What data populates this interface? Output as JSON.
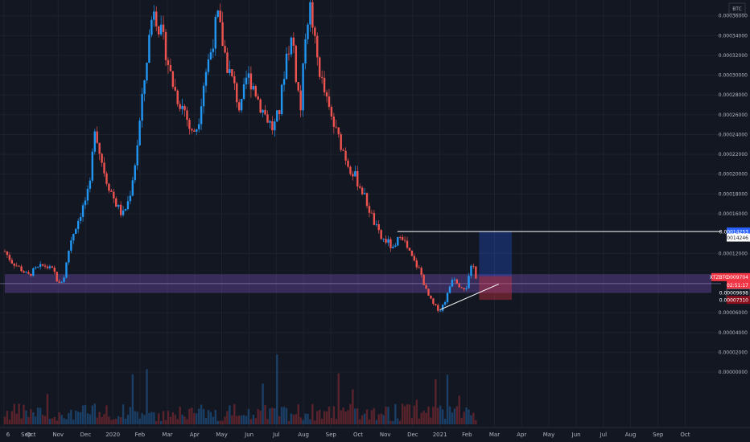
{
  "chart_data": {
    "type": "candlestick",
    "currency_label": "BTC",
    "symbol": "XTZBTC",
    "xlim": [
      2019.67,
      2021.83
    ],
    "ylim": [
      -5.6e-06,
      3.76e-05
    ],
    "x_tick_labels": [
      {
        "label": "6",
        "t": 2019.667
      },
      {
        "label": "Sep",
        "t": 2019.667
      },
      {
        "label": "Oct",
        "t": 2019.75
      },
      {
        "label": "Nov",
        "t": 2019.833
      },
      {
        "label": "Dec",
        "t": 2019.917
      },
      {
        "label": "2020",
        "t": 2020.0
      },
      {
        "label": "Feb",
        "t": 2020.083
      },
      {
        "label": "Mar",
        "t": 2020.167
      },
      {
        "label": "Apr",
        "t": 2020.25
      },
      {
        "label": "May",
        "t": 2020.333
      },
      {
        "label": "Jun",
        "t": 2020.417
      },
      {
        "label": "Jul",
        "t": 2020.5
      },
      {
        "label": "Aug",
        "t": 2020.583
      },
      {
        "label": "Sep",
        "t": 2020.667
      },
      {
        "label": "Oct",
        "t": 2020.75
      },
      {
        "label": "Nov",
        "t": 2020.833
      },
      {
        "label": "Dec",
        "t": 2020.917
      },
      {
        "label": "2021",
        "t": 2021.0
      },
      {
        "label": "Feb",
        "t": 2021.083
      },
      {
        "label": "Mar",
        "t": 2021.167
      },
      {
        "label": "Apr",
        "t": 2021.25
      },
      {
        "label": "May",
        "t": 2021.333
      },
      {
        "label": "Jun",
        "t": 2021.417
      },
      {
        "label": "Jul",
        "t": 2021.5
      },
      {
        "label": "Aug",
        "t": 2021.583
      },
      {
        "label": "Sep",
        "t": 2021.667
      },
      {
        "label": "Oct",
        "t": 2021.75
      }
    ],
    "y_tick_labels": [
      {
        "label": "0.00036000",
        "v": 3.6e-05
      },
      {
        "label": "0.00034000",
        "v": 3.4e-05
      },
      {
        "label": "0.00032000",
        "v": 3.2e-05
      },
      {
        "label": "0.00030000",
        "v": 3e-05
      },
      {
        "label": "0.00028000",
        "v": 2.8e-05
      },
      {
        "label": "0.00026000",
        "v": 2.6e-05
      },
      {
        "label": "0.00024000",
        "v": 2.4e-05
      },
      {
        "label": "0.00022000",
        "v": 2.2e-05
      },
      {
        "label": "0.00020000",
        "v": 2e-05
      },
      {
        "label": "0.00018000",
        "v": 1.8e-05
      },
      {
        "label": "0.00016000",
        "v": 1.6e-05
      },
      {
        "label": "0.00012000",
        "v": 1.2e-05
      },
      {
        "label": "0.00006000",
        "v": 6e-06
      },
      {
        "label": "0.00004000",
        "v": 4e-06
      },
      {
        "label": "0.00002000",
        "v": 2e-06
      },
      {
        "label": "0.00000000",
        "v": 0.0
      }
    ],
    "price_badges": [
      {
        "label": "0.00014253",
        "v": 1.42e-05,
        "color": "#2962ff"
      },
      {
        "label": "0.00014246",
        "v": 1.36e-05,
        "color": "#ffffff"
      },
      {
        "label": "0.00009704",
        "v": 9.6e-06,
        "color": "#f23645",
        "tag": "XTZBTC"
      },
      {
        "label": "02:51:17",
        "v": 8.8e-06,
        "color": "#f23645"
      },
      {
        "label": "0.00009698",
        "v": 8e-06,
        "color": "#131722"
      },
      {
        "label": "0.00007310",
        "v": 7.3e-06,
        "color": "#880e1e"
      }
    ],
    "price_series": [
      {
        "t": 2019.67,
        "v": 1.22e-05
      },
      {
        "t": 2019.69,
        "v": 1.12e-05
      },
      {
        "t": 2019.72,
        "v": 1.04e-05
      },
      {
        "t": 2019.74,
        "v": 9.7e-06
      },
      {
        "t": 2019.76,
        "v": 1.03e-05
      },
      {
        "t": 2019.79,
        "v": 1.08e-05
      },
      {
        "t": 2019.82,
        "v": 1.02e-05
      },
      {
        "t": 2019.835,
        "v": 8.8e-06
      },
      {
        "t": 2019.85,
        "v": 9.5e-06
      },
      {
        "t": 2019.87,
        "v": 1.32e-05
      },
      {
        "t": 2019.89,
        "v": 1.5e-05
      },
      {
        "t": 2019.91,
        "v": 1.68e-05
      },
      {
        "t": 2019.93,
        "v": 1.86e-05
      },
      {
        "t": 2019.945,
        "v": 2.5e-05
      },
      {
        "t": 2019.96,
        "v": 2.22e-05
      },
      {
        "t": 2019.98,
        "v": 1.95e-05
      },
      {
        "t": 2020.01,
        "v": 1.7e-05
      },
      {
        "t": 2020.03,
        "v": 1.58e-05
      },
      {
        "t": 2020.05,
        "v": 1.75e-05
      },
      {
        "t": 2020.07,
        "v": 2.15e-05
      },
      {
        "t": 2020.09,
        "v": 2.75e-05
      },
      {
        "t": 2020.11,
        "v": 3.35e-05
      },
      {
        "t": 2020.125,
        "v": 3.72e-05
      },
      {
        "t": 2020.14,
        "v": 3.5e-05
      },
      {
        "t": 2020.16,
        "v": 3.28e-05
      },
      {
        "t": 2020.18,
        "v": 2.95e-05
      },
      {
        "t": 2020.2,
        "v": 2.75e-05
      },
      {
        "t": 2020.22,
        "v": 2.65e-05
      },
      {
        "t": 2020.24,
        "v": 2.4e-05
      },
      {
        "t": 2020.26,
        "v": 2.5e-05
      },
      {
        "t": 2020.28,
        "v": 2.98e-05
      },
      {
        "t": 2020.3,
        "v": 3.25e-05
      },
      {
        "t": 2020.32,
        "v": 3.6e-05
      },
      {
        "t": 2020.335,
        "v": 3.35e-05
      },
      {
        "t": 2020.35,
        "v": 3.1e-05
      },
      {
        "t": 2020.37,
        "v": 2.9e-05
      },
      {
        "t": 2020.39,
        "v": 2.62e-05
      },
      {
        "t": 2020.41,
        "v": 3e-05
      },
      {
        "t": 2020.43,
        "v": 2.9e-05
      },
      {
        "t": 2020.45,
        "v": 2.7e-05
      },
      {
        "t": 2020.47,
        "v": 2.58e-05
      },
      {
        "t": 2020.49,
        "v": 2.45e-05
      },
      {
        "t": 2020.51,
        "v": 2.65e-05
      },
      {
        "t": 2020.53,
        "v": 3.2e-05
      },
      {
        "t": 2020.55,
        "v": 3.4e-05
      },
      {
        "t": 2020.56,
        "v": 3e-05
      },
      {
        "t": 2020.575,
        "v": 2.65e-05
      },
      {
        "t": 2020.59,
        "v": 3.5e-05
      },
      {
        "t": 2020.605,
        "v": 3.7e-05
      },
      {
        "t": 2020.62,
        "v": 3.25e-05
      },
      {
        "t": 2020.64,
        "v": 2.92e-05
      },
      {
        "t": 2020.66,
        "v": 2.65e-05
      },
      {
        "t": 2020.68,
        "v": 2.45e-05
      },
      {
        "t": 2020.7,
        "v": 2.28e-05
      },
      {
        "t": 2020.72,
        "v": 2.1e-05
      },
      {
        "t": 2020.74,
        "v": 1.98e-05
      },
      {
        "t": 2020.76,
        "v": 1.85e-05
      },
      {
        "t": 2020.78,
        "v": 1.68e-05
      },
      {
        "t": 2020.8,
        "v": 1.5e-05
      },
      {
        "t": 2020.82,
        "v": 1.35e-05
      },
      {
        "t": 2020.84,
        "v": 1.32e-05
      },
      {
        "t": 2020.86,
        "v": 1.22e-05
      },
      {
        "t": 2020.88,
        "v": 1.42e-05
      },
      {
        "t": 2020.9,
        "v": 1.25e-05
      },
      {
        "t": 2020.92,
        "v": 1.12e-05
      },
      {
        "t": 2020.94,
        "v": 1.02e-05
      },
      {
        "t": 2020.96,
        "v": 8e-06
      },
      {
        "t": 2020.98,
        "v": 6.8e-06
      },
      {
        "t": 2021.0,
        "v": 6.2e-06
      },
      {
        "t": 2021.02,
        "v": 7.5e-06
      },
      {
        "t": 2021.04,
        "v": 9.8e-06
      },
      {
        "t": 2021.06,
        "v": 8.8e-06
      },
      {
        "t": 2021.08,
        "v": 8.5e-06
      },
      {
        "t": 2021.1,
        "v": 1.1e-05
      },
      {
        "t": 2021.11,
        "v": 9.7e-06
      }
    ],
    "horizontal_line": {
      "v": 1.42e-05,
      "t_start": 2020.87,
      "t_end": 2021.83
    },
    "trend_line": {
      "t1": 2021.0,
      "v1": 6.3e-06,
      "t2": 2021.18,
      "v2": 8.9e-06
    },
    "zone": {
      "top": 9.9e-06,
      "bottom": 8e-06,
      "t_start": 2019.67,
      "t_end": 2021.83
    },
    "position": {
      "t_start": 2021.12,
      "t_end": 2021.22,
      "entry": 9.7e-06,
      "target": 1.42e-05,
      "stop": 7.3e-06
    }
  }
}
